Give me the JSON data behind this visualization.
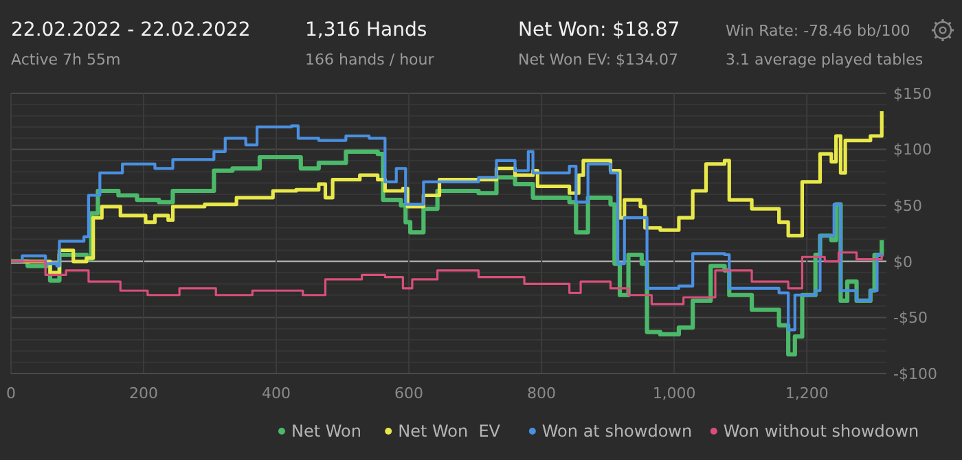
{
  "chart_data": {
    "type": "step",
    "title": "22.02.2022 - 22.02.2022",
    "subtitle": "Active 7h 55m",
    "annotations": [
      "1,316 Hands",
      "166 hands / hour",
      "Net Won: $18.87",
      "Net Won  EV: $134.07",
      "Win Rate: -78.46 bb/100",
      "3.1 average played tables"
    ],
    "xlim": [
      0,
      1320
    ],
    "xticks": [
      0,
      200,
      400,
      600,
      800,
      {
        "value": 1000,
        "label": "1,000"
      },
      {
        "value": 1200,
        "label": "1,200"
      }
    ],
    "ylim": [
      -100,
      150
    ],
    "yticks": [
      {
        "value": -100,
        "label": "-$100"
      },
      {
        "value": -90,
        "label": null
      },
      {
        "value": -80,
        "label": null
      },
      {
        "value": -70,
        "label": null
      },
      {
        "value": -60,
        "label": null
      },
      {
        "value": -50,
        "label": "-$50"
      },
      {
        "value": -40,
        "label": null
      },
      {
        "value": -30,
        "label": null
      },
      {
        "value": -20,
        "label": null
      },
      {
        "value": -10,
        "label": null
      },
      {
        "value": 0,
        "label": "$0"
      },
      {
        "value": 10,
        "label": null
      },
      {
        "value": 20,
        "label": null
      },
      {
        "value": 30,
        "label": null
      },
      {
        "value": 40,
        "label": null
      },
      {
        "value": 50,
        "label": "$50"
      },
      {
        "value": 60,
        "label": null
      },
      {
        "value": 70,
        "label": null
      },
      {
        "value": 80,
        "label": null
      },
      {
        "value": 90,
        "label": null
      },
      {
        "value": 100,
        "label": "$100"
      },
      {
        "value": 110,
        "label": null
      },
      {
        "value": 120,
        "label": null
      },
      {
        "value": 130,
        "label": null
      },
      {
        "value": 140,
        "label": null
      },
      {
        "value": 150,
        "label": "$150"
      }
    ],
    "grid": true,
    "legend": "bottom",
    "marker": "none",
    "line_style": "solid",
    "series": [
      {
        "name": "Net Won",
        "color": "#4cb86a",
        "x": [
          0,
          25,
          59,
          73,
          114,
          121,
          131,
          162,
          190,
          223,
          244,
          306,
          334,
          375,
          423,
          437,
          464,
          505,
          553,
          561,
          588,
          595,
          602,
          622,
          643,
          705,
          732,
          760,
          787,
          842,
          852,
          870,
          904,
          910,
          918,
          931,
          951,
          959,
          979,
          1007,
          1028,
          1055,
          1076,
          1083,
          1117,
          1158,
          1172,
          1182,
          1193,
          1213,
          1220,
          1237,
          1244,
          1251,
          1261,
          1275,
          1296,
          1302,
          1313
        ],
        "values": [
          0,
          -4,
          -17,
          6,
          2,
          43,
          63,
          59,
          55,
          53,
          63,
          81,
          83,
          93,
          93,
          83,
          88,
          98,
          96,
          55,
          50,
          35,
          26,
          47,
          63,
          61,
          75,
          69,
          57,
          53,
          26,
          57,
          51,
          -2,
          -30,
          6,
          -2,
          -63,
          -65,
          -59,
          -35,
          -4,
          -8,
          -30,
          -43,
          -57,
          -83,
          -67,
          -30,
          6,
          23,
          19,
          51,
          -35,
          -18,
          -35,
          -26,
          6,
          19
        ]
      },
      {
        "name": "Net Won  EV",
        "color": "#e8e84a",
        "x": [
          0,
          25,
          59,
          73,
          94,
          114,
          124,
          137,
          165,
          203,
          217,
          237,
          244,
          292,
          340,
          395,
          430,
          464,
          474,
          485,
          526,
          553,
          564,
          591,
          598,
          622,
          646,
          705,
          732,
          760,
          787,
          794,
          842,
          856,
          863,
          904,
          918,
          925,
          949,
          956,
          979,
          1007,
          1028,
          1048,
          1076,
          1083,
          1117,
          1158,
          1172,
          1193,
          1220,
          1237,
          1244,
          1251,
          1258,
          1296,
          1313
        ],
        "values": [
          0,
          0,
          -10,
          10,
          0,
          3,
          39,
          49,
          41,
          35,
          41,
          37,
          49,
          51,
          57,
          63,
          64,
          69,
          57,
          73,
          77,
          73,
          63,
          65,
          49,
          59,
          73,
          73,
          83,
          77,
          81,
          67,
          61,
          77,
          90,
          81,
          39,
          55,
          49,
          30,
          28,
          39,
          63,
          87,
          90,
          55,
          47,
          35,
          23,
          71,
          96,
          89,
          112,
          79,
          108,
          112,
          134
        ]
      },
      {
        "name": "Won at showdown",
        "color": "#4a90e2",
        "x": [
          0,
          17,
          52,
          69,
          73,
          110,
          117,
          134,
          168,
          217,
          244,
          306,
          323,
          354,
          371,
          423,
          433,
          464,
          505,
          540,
          559,
          564,
          581,
          595,
          622,
          705,
          732,
          760,
          780,
          787,
          842,
          852,
          870,
          904,
          915,
          925,
          951,
          959,
          1007,
          1028,
          1076,
          1083,
          1158,
          1172,
          1182,
          1213,
          1220,
          1241,
          1251,
          1275,
          1296,
          1306,
          1313
        ],
        "values": [
          0,
          5,
          -2,
          -4,
          18,
          22,
          59,
          79,
          87,
          83,
          91,
          98,
          110,
          104,
          120,
          121,
          110,
          108,
          112,
          110,
          110,
          71,
          83,
          51,
          71,
          75,
          90,
          81,
          98,
          79,
          85,
          53,
          87,
          79,
          -2,
          39,
          39,
          -24,
          -22,
          7,
          6,
          -24,
          -28,
          -61,
          -30,
          -26,
          23,
          51,
          -26,
          -35,
          -26,
          6,
          4
        ]
      },
      {
        "name": "Won without showdown",
        "color": "#d94f7a",
        "x": [
          0,
          52,
          83,
          117,
          165,
          206,
          254,
          309,
          364,
          440,
          474,
          529,
          564,
          591,
          605,
          643,
          705,
          774,
          842,
          859,
          904,
          931,
          966,
          1014,
          1062,
          1117,
          1172,
          1193,
          1227,
          1248,
          1275,
          1313
        ],
        "values": [
          0,
          -12,
          -8,
          -18,
          -26,
          -30,
          -24,
          -30,
          -26,
          -30,
          -16,
          -12,
          -14,
          -24,
          -16,
          -8,
          -14,
          -20,
          -28,
          -18,
          -24,
          -30,
          -38,
          -32,
          -8,
          -18,
          -24,
          4,
          0,
          8,
          2,
          6
        ]
      }
    ]
  }
}
